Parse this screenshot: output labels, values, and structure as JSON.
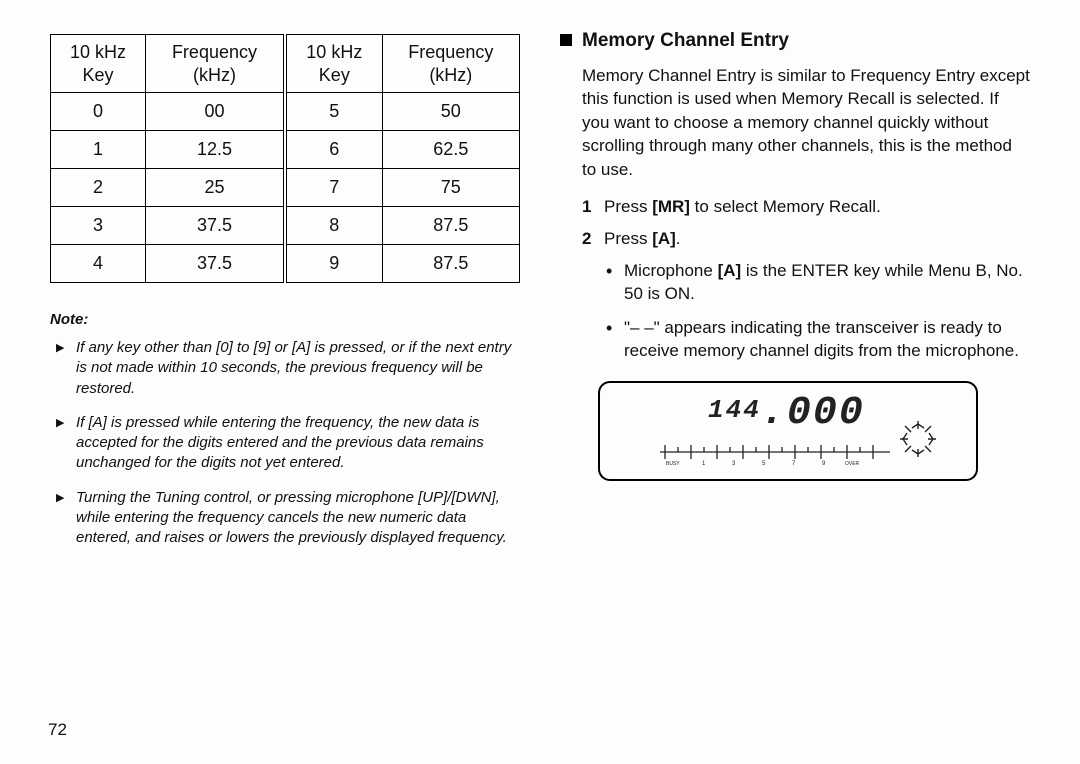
{
  "table": {
    "headers": {
      "key_col": "10 kHz\nKey",
      "freq_col": "Frequency\n(kHz)"
    },
    "left": [
      {
        "key": "0",
        "freq": "00"
      },
      {
        "key": "1",
        "freq": "12.5"
      },
      {
        "key": "2",
        "freq": "25"
      },
      {
        "key": "3",
        "freq": "37.5"
      },
      {
        "key": "4",
        "freq": "37.5"
      }
    ],
    "right": [
      {
        "key": "5",
        "freq": "50"
      },
      {
        "key": "6",
        "freq": "62.5"
      },
      {
        "key": "7",
        "freq": "75"
      },
      {
        "key": "8",
        "freq": "87.5"
      },
      {
        "key": "9",
        "freq": "87.5"
      }
    ]
  },
  "note_label": "Note:",
  "notes": [
    "If any key other than [0] to [9] or [A] is pressed, or if the next entry is not made within 10 seconds, the previous frequency will be restored.",
    "If [A] is pressed while entering the frequency, the new data is accepted for the digits entered and the previous data remains unchanged for the digits not yet entered.",
    "Turning the Tuning control, or pressing microphone [UP]/[DWN], while entering the frequency cancels the new numeric data entered, and raises or lowers the previously displayed frequency."
  ],
  "section": {
    "title": "Memory Channel Entry",
    "intro": "Memory Channel Entry is similar to Frequency Entry except this function is used when Memory Recall is selected.  If you want to choose a memory channel quickly without scrolling through many other channels, this is the method to use.",
    "step1_pre": "Press ",
    "step1_bold": "[MR]",
    "step1_post": " to select Memory Recall.",
    "step2_pre": "Press ",
    "step2_bold": "[A]",
    "step2_post": ".",
    "sub1_pre": "Microphone ",
    "sub1_bold": "[A]",
    "sub1_post": " is the ENTER key while Menu B, No. 50 is ON.",
    "sub2": "\"– –\" appears indicating the transceiver is ready to receive memory channel digits from the microphone."
  },
  "lcd": {
    "digits_small": "144",
    "digits_big": ".000",
    "scale_labels": [
      "BUSY",
      "1",
      "3",
      "5",
      "7",
      "9",
      "OVER"
    ]
  },
  "page_num": "72"
}
